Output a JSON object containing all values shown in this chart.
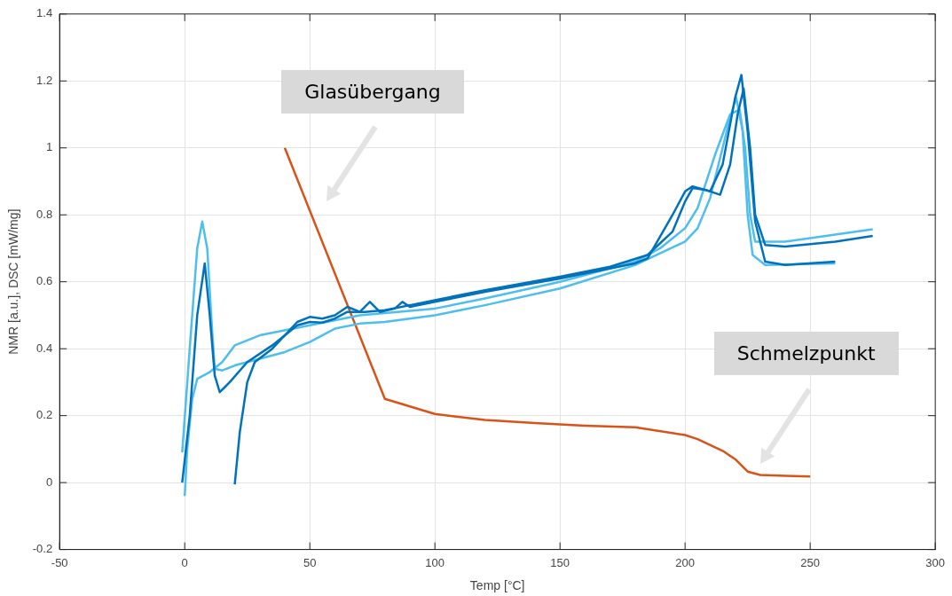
{
  "chart_data": {
    "type": "line",
    "xlabel": "Temp [°C]",
    "ylabel": "NMR [a.u.], DSC [mW/mg]",
    "xlim": [
      -50,
      300
    ],
    "xticks": [
      -50,
      0,
      50,
      100,
      150,
      200,
      250,
      300
    ],
    "ylim": [
      -0.2,
      1.4
    ],
    "yticks": [
      -0.2,
      0,
      0.2,
      0.4,
      0.6,
      0.8,
      1,
      1.2,
      1.4
    ],
    "grid": true,
    "legend": false,
    "marker": "none",
    "line_style": "solid",
    "series": [
      {
        "color": "#0072bd",
        "x": [
          -1,
          2,
          5,
          8,
          10,
          12,
          14,
          18,
          25,
          35,
          45,
          50,
          55,
          60,
          65,
          72,
          80,
          90,
          100,
          120,
          150,
          170,
          185,
          195,
          200,
          203,
          208,
          214,
          218,
          221,
          223.4,
          226,
          228,
          232,
          240,
          260,
          275
        ],
        "values": [
          0,
          0.2,
          0.5,
          0.655,
          0.5,
          0.32,
          0.27,
          0.3,
          0.36,
          0.41,
          0.47,
          0.48,
          0.478,
          0.49,
          0.51,
          0.51,
          0.515,
          0.53,
          0.545,
          0.575,
          0.615,
          0.645,
          0.68,
          0.75,
          0.84,
          0.88,
          0.875,
          0.86,
          0.95,
          1.1,
          1.177,
          1.0,
          0.8,
          0.71,
          0.705,
          0.72,
          0.737
        ]
      },
      {
        "color": "#0072bd",
        "x": [
          20,
          22,
          25,
          28,
          35,
          45,
          50,
          55,
          60,
          65,
          70,
          74,
          78,
          84,
          87,
          90,
          100,
          120,
          150,
          180,
          185,
          195,
          200,
          203,
          210,
          215,
          220,
          222.5,
          225,
          228,
          232,
          240,
          260
        ],
        "values": [
          -0.005,
          0.15,
          0.3,
          0.36,
          0.4,
          0.48,
          0.495,
          0.49,
          0.5,
          0.525,
          0.51,
          0.54,
          0.51,
          0.52,
          0.54,
          0.525,
          0.54,
          0.57,
          0.61,
          0.655,
          0.67,
          0.8,
          0.87,
          0.885,
          0.87,
          0.95,
          1.15,
          1.218,
          1.05,
          0.78,
          0.66,
          0.65,
          0.66
        ]
      },
      {
        "color": "#4dbeee",
        "x": [
          -1,
          2,
          5,
          7,
          9,
          11,
          12,
          15,
          20,
          30,
          40,
          50,
          60,
          70,
          80,
          100,
          120,
          150,
          180,
          200,
          205,
          210,
          215,
          218,
          220.4,
          223,
          225,
          227,
          232,
          260
        ],
        "values": [
          0.09,
          0.4,
          0.7,
          0.78,
          0.7,
          0.45,
          0.34,
          0.335,
          0.35,
          0.37,
          0.39,
          0.42,
          0.46,
          0.475,
          0.48,
          0.5,
          0.53,
          0.58,
          0.65,
          0.72,
          0.76,
          0.85,
          1.0,
          1.09,
          1.151,
          1.05,
          0.8,
          0.68,
          0.65,
          0.655
        ]
      },
      {
        "color": "#4dbeee",
        "x": [
          0,
          1,
          3,
          5,
          10,
          15,
          20,
          30,
          50,
          70,
          100,
          120,
          150,
          180,
          190,
          200,
          205,
          212,
          218,
          221.8,
          224,
          226,
          228,
          240,
          275
        ],
        "values": [
          -0.04,
          0.1,
          0.25,
          0.31,
          0.33,
          0.36,
          0.41,
          0.44,
          0.47,
          0.5,
          0.52,
          0.55,
          0.6,
          0.66,
          0.7,
          0.76,
          0.82,
          0.98,
          1.1,
          1.115,
          1.0,
          0.8,
          0.72,
          0.72,
          0.757
        ]
      },
      {
        "color": "#d95319",
        "x": [
          40,
          80,
          100,
          120,
          140,
          160,
          180,
          200,
          205,
          215,
          220,
          225,
          230,
          240,
          250
        ],
        "values": [
          1.0,
          0.25,
          0.205,
          0.187,
          0.178,
          0.17,
          0.165,
          0.142,
          0.13,
          0.095,
          0.07,
          0.033,
          0.023,
          0.02,
          0.018
        ]
      }
    ],
    "annotations": [
      "Glasübergang",
      "Schmelzpunkt"
    ]
  }
}
